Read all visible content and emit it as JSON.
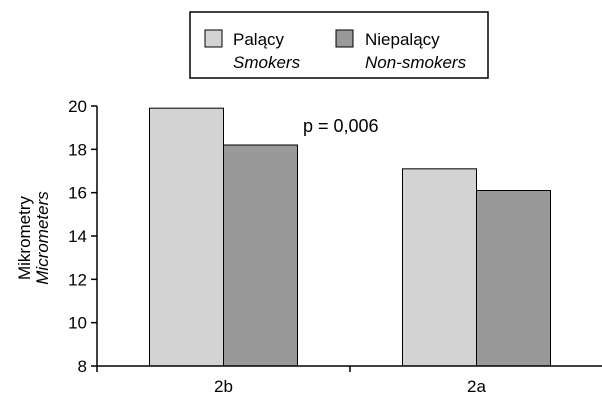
{
  "chart_data": {
    "type": "bar",
    "categories": [
      "2b",
      "2a"
    ],
    "series": [
      {
        "name": "Palący",
        "name_en": "Smokers",
        "color": "#d3d3d3",
        "values": [
          19.9,
          17.1
        ]
      },
      {
        "name": "Niepalący",
        "name_en": "Non-smokers",
        "color": "#999999",
        "values": [
          18.2,
          16.1
        ]
      }
    ],
    "ylabel": "Mikrometry",
    "ylabel_en": "Micrometers",
    "ylim": [
      8,
      20
    ],
    "yticks": [
      8,
      10,
      12,
      14,
      16,
      18,
      20
    ],
    "annotation": "p = 0,006",
    "grid": false,
    "legend_position": "top-center"
  }
}
